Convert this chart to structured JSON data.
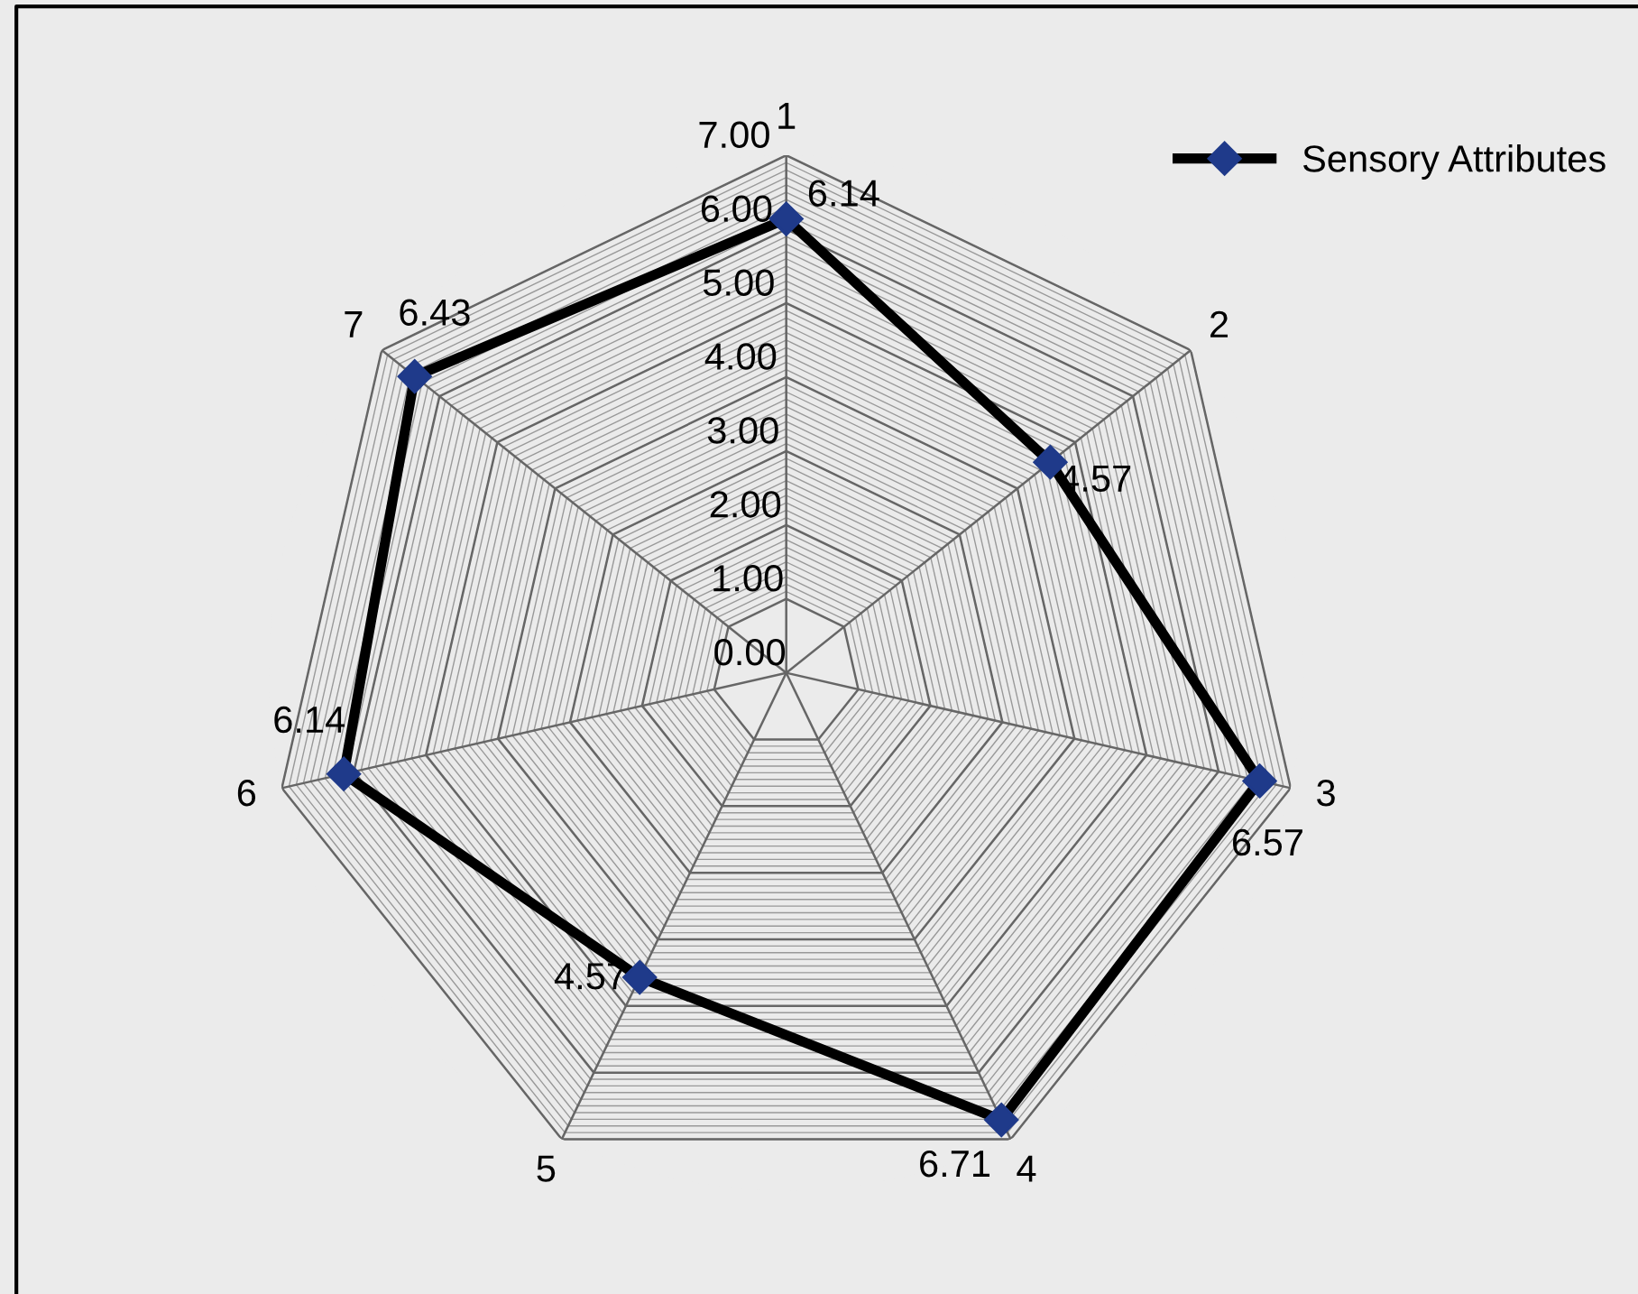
{
  "chart_data": {
    "type": "radar",
    "categories": [
      "1",
      "2",
      "3",
      "4",
      "5",
      "6",
      "7"
    ],
    "series": [
      {
        "name": "Sensory Attributes",
        "color": "#000000",
        "colors": [
          "#1f3a8a",
          "#1f3a8a",
          "#1f3a8a",
          "#1f3a8a",
          "#1f3a8a",
          "#1f3a8a",
          "#1f3a8a"
        ],
        "values": [
          6.14,
          4.57,
          6.57,
          6.71,
          4.57,
          6.14,
          6.43
        ]
      }
    ],
    "ylim": [
      0,
      7
    ],
    "yticks": [
      {
        "value": 0,
        "label": "0.00"
      },
      {
        "value": 1,
        "label": "1.00"
      },
      {
        "value": 2,
        "label": "2.00"
      },
      {
        "value": 3,
        "label": "3.00"
      },
      {
        "value": 4,
        "label": "4.00"
      },
      {
        "value": 5,
        "label": "5.00"
      },
      {
        "value": 6,
        "label": "6.00"
      },
      {
        "value": 7,
        "label": "7.00"
      }
    ],
    "grid": true,
    "legend": "top right",
    "marker": "diamond",
    "line_style": "solid",
    "data_labels": true
  }
}
